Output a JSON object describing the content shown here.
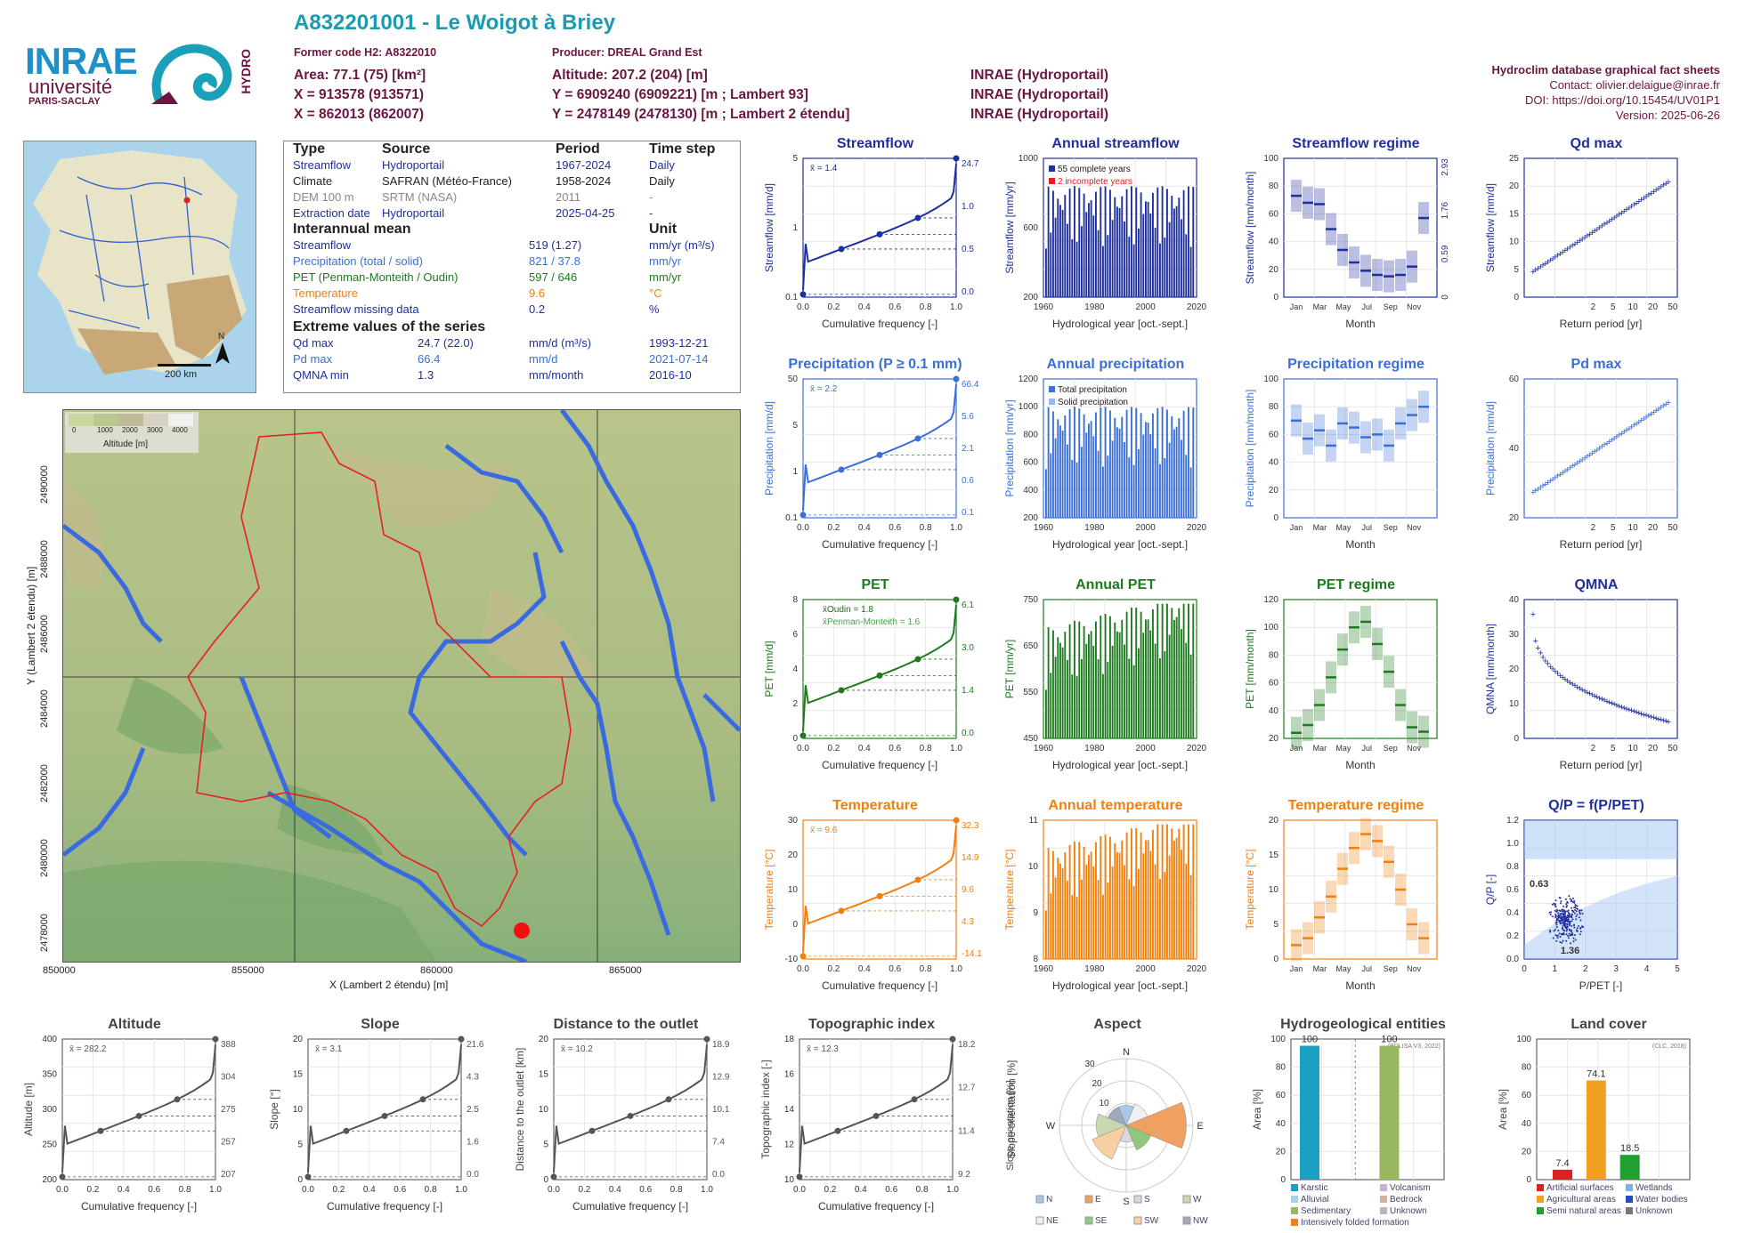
{
  "header": {
    "title": "A832201001 - Le Woigot à Briey",
    "former_code": "Former code H2: A8322010",
    "producer": "Producer: DREAL Grand Est",
    "area": "Area: 77.1 (75) [km²]",
    "altitude": "Altitude: 207.2 (204) [m]",
    "x93": "X = 913578 (913571)",
    "y93": "Y = 6909240 (6909221) [m ; Lambert 93]",
    "x2": "X = 862013 (862007)",
    "y2": "Y = 2478149 (2478130) [m ; Lambert 2 étendu]",
    "src1": "INRAE (Hydroportail)",
    "src2": "INRAE (Hydroportail)",
    "src3": "INRAE (Hydroportail)",
    "right1": "Hydroclim database graphical fact sheets",
    "right2": "Contact: olivier.delaigue@inrae.fr",
    "right3": "DOI: https://doi.org/10.15454/UV01P1",
    "right4": "Version: 2025-06-26"
  },
  "logo": {
    "inrae": "INRAE",
    "univ": "université",
    "ps": "PARIS-SACLAY",
    "hydro": "HYDRO"
  },
  "colors": {
    "streamflow": "#1f2f9e",
    "precip": "#3a6fd8",
    "pet": "#1e7a1e",
    "temp": "#f08010",
    "title_cyan": "#1a9bb0",
    "maroon": "#6b1640"
  },
  "info": {
    "h_type": "Type",
    "h_source": "Source",
    "h_period": "Period",
    "h_timestep": "Time step",
    "rows": [
      {
        "type": "Streamflow",
        "source": "Hydroportail",
        "period": "1967-2024",
        "step": "Daily",
        "color": "#1f2f9e"
      },
      {
        "type": "Climate",
        "source": "SAFRAN (Météo-France)",
        "period": "1958-2024",
        "step": "Daily",
        "color": "#222222"
      },
      {
        "type": "DEM 100 m",
        "source": "SRTM (NASA)",
        "period": "2011",
        "step": "-",
        "color": "#888888"
      },
      {
        "type": "Extraction date",
        "source": "Hydroportail",
        "period": "2025-04-25",
        "step": "-",
        "color": "#1f2f9e"
      }
    ],
    "h_interannual": "Interannual mean",
    "h_unit": "Unit",
    "means": [
      {
        "label": "Streamflow",
        "value": "519 (1.27)",
        "unit": "mm/yr (m³/s)",
        "color": "#1f2f9e"
      },
      {
        "label": "Precipitation (total / solid)",
        "value": "821 / 37.8",
        "unit": "mm/yr",
        "color": "#3a6fd8"
      },
      {
        "label": "PET (Penman-Monteith / Oudin)",
        "value": "597 / 646",
        "unit": "mm/yr",
        "color": "#1e7a1e"
      },
      {
        "label": "Temperature",
        "value": "9.6",
        "unit": "°C",
        "color": "#f08010"
      },
      {
        "label": "Streamflow missing data",
        "value": "0.2",
        "unit": "%",
        "color": "#1f2f9e"
      }
    ],
    "h_extreme": "Extreme values of the series",
    "extremes": [
      {
        "label": "Qd max",
        "value": "24.7 (22.0)",
        "unit": "mm/d (m³/s)",
        "date": "1993-12-21",
        "color": "#1f2f9e"
      },
      {
        "label": "Pd max",
        "value": "66.4",
        "unit": "mm/d",
        "date": "2021-07-14",
        "color": "#3a6fd8"
      },
      {
        "label": "QMNA min",
        "value": "1.3",
        "unit": "mm/month",
        "date": "2016-10",
        "color": "#1f2f9e"
      }
    ]
  },
  "small_map": {
    "scale": "200 km",
    "north": "N"
  },
  "big_map": {
    "legend_title": "Altitude [m]",
    "legend_ticks": [
      "0",
      "1000",
      "2000",
      "3000",
      "4000"
    ],
    "xlabel": "X (Lambert 2 étendu) [m]",
    "ylabel": "Y (Lambert 2 étendu) [m]",
    "xticks": [
      "850000",
      "855000",
      "860000",
      "865000"
    ],
    "yticks": [
      "2478000",
      "2480000",
      "2482000",
      "2484000",
      "2486000",
      "2488000",
      "2490000"
    ]
  },
  "chart_data": [
    {
      "id": "streamflow_cdf",
      "type": "line",
      "title": "Streamflow",
      "xlabel": "Cumulative frequency [-]",
      "ylabel": "Streamflow [mm/d]",
      "mean_label": "x̄ = 1.4",
      "log_y": true,
      "x_ticks": [
        "0.0",
        "0.2",
        "0.4",
        "0.6",
        "0.8",
        "1.0"
      ],
      "y_ticks": [
        "0.1",
        "1",
        "5"
      ],
      "right_ticks": [
        "24.7",
        "1.0",
        "0.5",
        "0.0"
      ],
      "points": [
        [
          0,
          0.0
        ],
        [
          0.25,
          0.5
        ],
        [
          0.5,
          1.0
        ],
        [
          0.75,
          2.2
        ],
        [
          1.0,
          24.7
        ]
      ]
    },
    {
      "id": "annual_streamflow",
      "type": "bar",
      "title": "Annual streamflow",
      "xlabel": "Hydrological year [oct.-sept.]",
      "ylabel": "Streamflow [mm/yr]",
      "legend": [
        "55 complete years",
        "2 incomplete years"
      ],
      "x_ticks": [
        "1960",
        "1980",
        "2000",
        "2020"
      ],
      "y_ticks": [
        "200",
        "600",
        "1000"
      ]
    },
    {
      "id": "streamflow_regime",
      "type": "bar",
      "title": "Streamflow regime",
      "xlabel": "Month",
      "ylabel": "Streamflow [mm/month]",
      "y_ticks": [
        "0",
        "20",
        "40",
        "60",
        "80",
        "100"
      ],
      "right_ticks": [
        "2.93",
        "1.76",
        "0.59",
        "0"
      ],
      "months": [
        "Jan",
        "Mar",
        "May",
        "Jul",
        "Sep",
        "Nov"
      ],
      "median": [
        73,
        68,
        67,
        49,
        34,
        25,
        19,
        16,
        15,
        16,
        22,
        57
      ]
    },
    {
      "id": "qd_max",
      "type": "scatter",
      "title": "Qd max",
      "xlabel": "Return period [yr]",
      "ylabel": "Streamflow [mm/d]",
      "x_ticks": [
        "2",
        "5",
        "10",
        "20",
        "50"
      ],
      "y_ticks": [
        "0",
        "5",
        "10",
        "15",
        "20",
        "25"
      ]
    },
    {
      "id": "precip_cdf",
      "type": "line",
      "title": "Precipitation (P ≥ 0.1 mm)",
      "xlabel": "Cumulative frequency [-]",
      "ylabel": "Precipitation [mm/d]",
      "mean_label": "x̄ = 2.2",
      "x_ticks": [
        "0.0",
        "0.2",
        "0.4",
        "0.6",
        "0.8",
        "1.0"
      ],
      "y_ticks": [
        "0.1",
        "1",
        "5",
        "50"
      ],
      "right_ticks": [
        "66.4",
        "5.6",
        "2.1",
        "0.6",
        "0.1"
      ]
    },
    {
      "id": "annual_precip",
      "type": "bar",
      "title": "Annual precipitation",
      "xlabel": "Hydrological year [oct.-sept.]",
      "ylabel": "Precipitation [mm/yr]",
      "legend": [
        "Total precipitation",
        "Solid precipitation"
      ],
      "x_ticks": [
        "1960",
        "1980",
        "2000",
        "2020"
      ],
      "y_ticks": [
        "200",
        "400",
        "600",
        "800",
        "1000",
        "1200"
      ]
    },
    {
      "id": "precip_regime",
      "type": "bar",
      "title": "Precipitation regime",
      "xlabel": "Month",
      "ylabel": "Precipitation [mm/month]",
      "y_ticks": [
        "0",
        "20",
        "40",
        "60",
        "80",
        "100"
      ],
      "months": [
        "Jan",
        "Mar",
        "May",
        "Jul",
        "Sep",
        "Nov"
      ],
      "median": [
        70,
        57,
        63,
        52,
        68,
        65,
        58,
        60,
        52,
        68,
        74,
        80
      ]
    },
    {
      "id": "pd_max",
      "type": "scatter",
      "title": "Pd max",
      "xlabel": "Return period [yr]",
      "ylabel": "Precipitation [mm/d]",
      "x_ticks": [
        "2",
        "5",
        "10",
        "20",
        "50"
      ],
      "y_ticks": [
        "20",
        "40",
        "60"
      ]
    },
    {
      "id": "pet_cdf",
      "type": "line",
      "title": "PET",
      "xlabel": "Cumulative frequency [-]",
      "ylabel": "PET [mm/d]",
      "mean_label_1": "x̄Oudin = 1.8",
      "mean_label_2": "x̄Penman-Monteith = 1.6",
      "x_ticks": [
        "0.0",
        "0.2",
        "0.4",
        "0.6",
        "0.8",
        "1.0"
      ],
      "y_ticks": [
        "0",
        "2",
        "4",
        "6",
        "8"
      ],
      "right_ticks": [
        "6.1",
        "3.0",
        "1.4",
        "0.0"
      ]
    },
    {
      "id": "annual_pet",
      "type": "bar",
      "title": "Annual PET",
      "xlabel": "Hydrological year [oct.-sept.]",
      "ylabel": "PET [mm/yr]",
      "x_ticks": [
        "1960",
        "1980",
        "2000",
        "2020"
      ],
      "y_ticks": [
        "450",
        "550",
        "650",
        "750"
      ]
    },
    {
      "id": "pet_regime",
      "type": "bar",
      "title": "PET regime",
      "xlabel": "Month",
      "ylabel": "PET [mm/month]",
      "y_ticks": [
        "20",
        "40",
        "60",
        "80",
        "100",
        "120"
      ],
      "months": [
        "Jan",
        "Mar",
        "May",
        "Jul",
        "Sep",
        "Nov"
      ]
    },
    {
      "id": "qmna",
      "type": "scatter",
      "title": "QMNA",
      "xlabel": "Return period [yr]",
      "ylabel": "QMNA [mm/month]",
      "x_ticks": [
        "2",
        "5",
        "10",
        "20",
        "50"
      ],
      "y_ticks": [
        "0",
        "10",
        "20",
        "30",
        "40"
      ]
    },
    {
      "id": "temp_cdf",
      "type": "line",
      "title": "Temperature",
      "xlabel": "Cumulative frequency [-]",
      "ylabel": "Temperature [°C]",
      "mean_label": "x̄ = 9.6",
      "x_ticks": [
        "0.0",
        "0.2",
        "0.4",
        "0.6",
        "0.8",
        "1.0"
      ],
      "y_ticks": [
        "-10",
        "0",
        "10",
        "20",
        "30"
      ],
      "right_ticks": [
        "32.3",
        "14.9",
        "9.6",
        "4.3",
        "-14.1"
      ]
    },
    {
      "id": "annual_temp",
      "type": "bar",
      "title": "Annual temperature",
      "xlabel": "Hydrological year [oct.-sept.]",
      "ylabel": "Temperature [°C]",
      "x_ticks": [
        "1960",
        "1980",
        "2000",
        "2020"
      ],
      "y_ticks": [
        "8",
        "9",
        "10",
        "11"
      ]
    },
    {
      "id": "temp_regime",
      "type": "bar",
      "title": "Temperature regime",
      "xlabel": "Month",
      "ylabel": "Temperature [°C]",
      "y_ticks": [
        "0",
        "5",
        "10",
        "15",
        "20"
      ],
      "months": [
        "Jan",
        "Mar",
        "May",
        "Jul",
        "Sep",
        "Nov"
      ]
    },
    {
      "id": "qp_ppet",
      "type": "scatter",
      "title": "Q/P = f(P/PET)",
      "xlabel": "P/PET [-]",
      "ylabel": "Q/P [-]",
      "x_ticks": [
        "0",
        "1",
        "2",
        "3",
        "4",
        "5"
      ],
      "y_ticks": [
        "0.0",
        "0.2",
        "0.4",
        "0.6",
        "0.8",
        "1.0",
        "1.2"
      ],
      "annot_y": "0.63",
      "annot_x": "1.36"
    },
    {
      "id": "altitude_cdf",
      "type": "line",
      "title": "Altitude",
      "xlabel": "Cumulative frequency [-]",
      "ylabel": "Altitude [m]",
      "mean_label": "x̄ = 282.2",
      "x_ticks": [
        "0.0",
        "0.2",
        "0.4",
        "0.6",
        "0.8",
        "1.0"
      ],
      "y_ticks": [
        "200",
        "250",
        "300",
        "350",
        "400"
      ],
      "right_ticks": [
        "388",
        "304",
        "275",
        "257",
        "207"
      ]
    },
    {
      "id": "slope_cdf",
      "type": "line",
      "title": "Slope",
      "xlabel": "Cumulative frequency [-]",
      "ylabel": "Slope [°]",
      "mean_label": "x̄ = 3.1",
      "x_ticks": [
        "0.0",
        "0.2",
        "0.4",
        "0.6",
        "0.8",
        "1.0"
      ],
      "y_ticks": [
        "0",
        "5",
        "10",
        "15",
        "20"
      ],
      "right_ticks": [
        "21.6",
        "4.3",
        "2.5",
        "1.6",
        "0.0"
      ]
    },
    {
      "id": "distance_cdf",
      "type": "line",
      "title": "Distance to the outlet",
      "xlabel": "Cumulative frequency [-]",
      "ylabel": "Distance to the outlet [km]",
      "mean_label": "x̄ = 10.2",
      "x_ticks": [
        "0.0",
        "0.2",
        "0.4",
        "0.6",
        "0.8",
        "1.0"
      ],
      "y_ticks": [
        "0",
        "5",
        "10",
        "15",
        "20"
      ],
      "right_ticks": [
        "18.9",
        "12.9",
        "10.1",
        "7.4",
        "0.0"
      ]
    },
    {
      "id": "topo_cdf",
      "type": "line",
      "title": "Topographic index",
      "xlabel": "Cumulative frequency [-]",
      "ylabel": "Topographic index [-]",
      "mean_label": "x̄ = 12.3",
      "x_ticks": [
        "0.0",
        "0.2",
        "0.4",
        "0.6",
        "0.8",
        "1.0"
      ],
      "y_ticks": [
        "10",
        "12",
        "14",
        "16",
        "18"
      ],
      "right_ticks": [
        "18.2",
        "12.7",
        "11.4",
        "9.2"
      ]
    },
    {
      "id": "aspect",
      "type": "pie",
      "title": "Aspect",
      "ylabel": "Slope orientation [%]",
      "ticks": [
        "10",
        "20",
        "30"
      ],
      "dirs": [
        "N",
        "E",
        "S",
        "W"
      ],
      "legend": [
        "N",
        "E",
        "S",
        "W",
        "NE",
        "SE",
        "SW",
        "NW"
      ]
    },
    {
      "id": "hydrogeo",
      "type": "bar",
      "title": "Hydrogeological entities",
      "source": "(BDLISA V3, 2022)",
      "ylabel": "Area [%]",
      "values": [
        100,
        100
      ],
      "value_labels": [
        "100",
        "100"
      ],
      "y_ticks": [
        "0",
        "20",
        "40",
        "60",
        "80",
        "100"
      ],
      "legend": [
        "Karstic",
        "Volcanism",
        "Alluvial",
        "Bedrock",
        "Sedimentary",
        "Unknown",
        "Intensively folded formation"
      ]
    },
    {
      "id": "landcover",
      "type": "bar",
      "title": "Land cover",
      "source": "(CLC, 2018)",
      "ylabel": "Area [%]",
      "values": [
        7.4,
        74.1,
        18.5
      ],
      "value_labels": [
        "7.4",
        "74.1",
        "18.5"
      ],
      "y_ticks": [
        "0",
        "20",
        "40",
        "60",
        "80",
        "100"
      ],
      "legend": [
        "Artificial surfaces",
        "Wetlands",
        "Agricultural areas",
        "Water bodies",
        "Semi natural areas",
        "Unknown"
      ]
    }
  ]
}
